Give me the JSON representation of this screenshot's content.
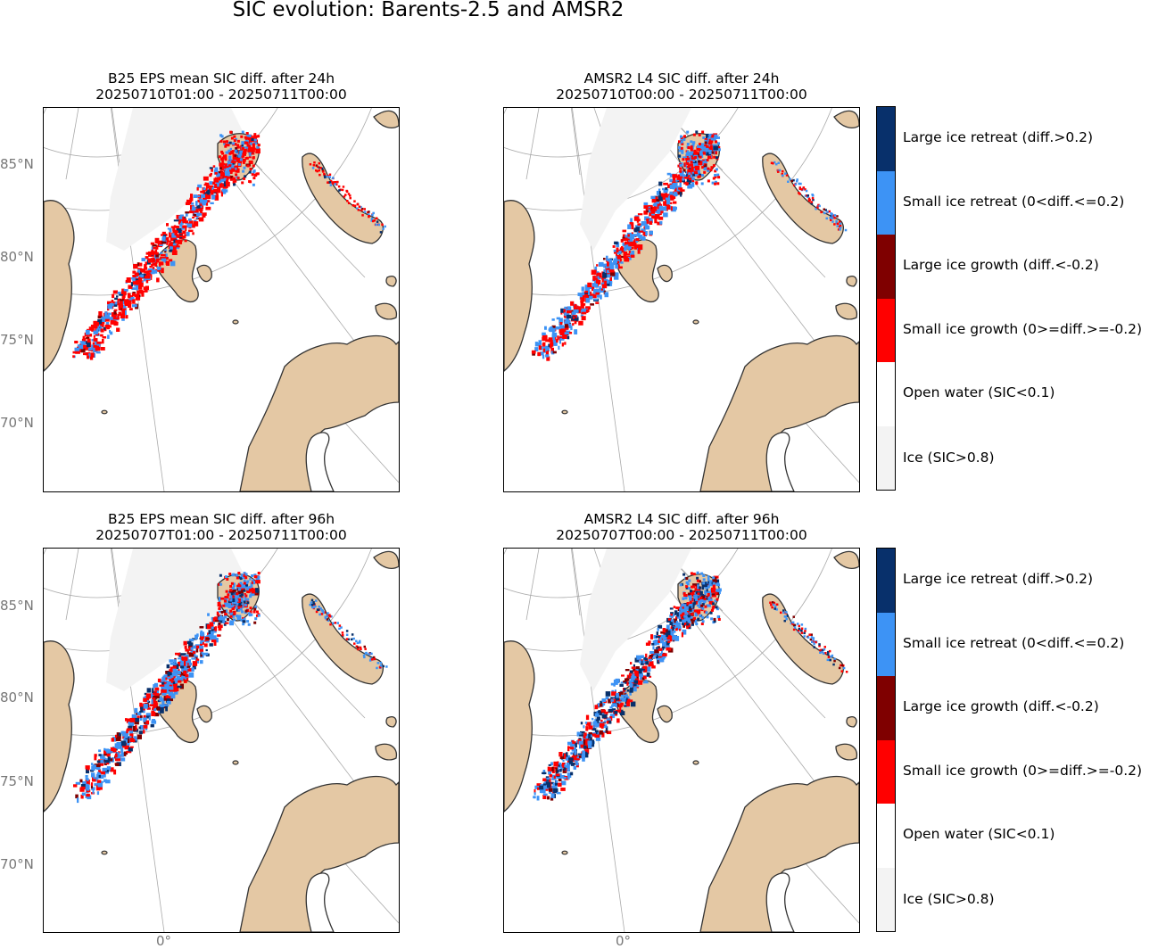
{
  "figure_title": "SIC evolution: Barents-2.5 and AMSR2",
  "panels": [
    {
      "id": "tl",
      "title": "B25 EPS mean SIC diff. after 24h",
      "subtitle": "20250710T01:00 - 20250711T00:00",
      "source": "model",
      "lead": "24h",
      "ice_pattern": "red-dominant"
    },
    {
      "id": "tr",
      "title": "AMSR2 L4 SIC diff. after 24h",
      "subtitle": "20250710T00:00 - 20250711T00:00",
      "source": "obs",
      "lead": "24h",
      "ice_pattern": "mixed"
    },
    {
      "id": "bl",
      "title": "B25 EPS mean SIC diff. after 96h",
      "subtitle": "20250707T01:00 - 20250711T00:00",
      "source": "model",
      "lead": "96h",
      "ice_pattern": "blue-red-mixed"
    },
    {
      "id": "br",
      "title": "AMSR2 L4 SIC diff. after 96h",
      "subtitle": "20250707T00:00 - 20250711T00:00",
      "source": "obs",
      "lead": "96h",
      "ice_pattern": "blue-red-mixed"
    }
  ],
  "lat_labels": [
    "85°N",
    "80°N",
    "75°N",
    "70°N"
  ],
  "lon_label": "0°",
  "legend": [
    {
      "label": "Large ice retreat (diff.>0.2)",
      "color": "#08306b"
    },
    {
      "label": "Small ice retreat (0<diff.<=0.2)",
      "color": "#3d93f5"
    },
    {
      "label": "Large ice growth (diff.<-0.2)",
      "color": "#7f0000"
    },
    {
      "label": "Small ice growth (0>=diff.>=-0.2)",
      "color": "#ff0000"
    },
    {
      "label": "Open water (SIC<0.1)",
      "color": "#ffffff"
    },
    {
      "label": "Ice (SIC>0.8)",
      "color": "#f3f3f3"
    }
  ],
  "colors": {
    "land": "#e4c8a4",
    "coast": "#333333",
    "grid": "#aaaaaa",
    "ice": "#f3f3f3"
  }
}
